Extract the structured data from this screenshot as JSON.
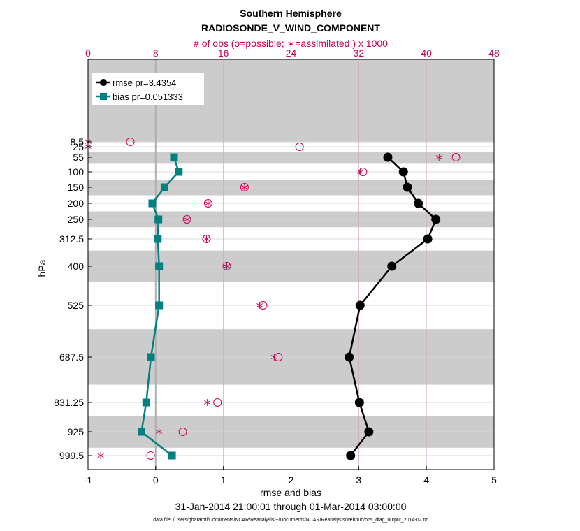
{
  "chart_data": {
    "type": "line",
    "title": "Southern Hemisphere",
    "subtitle": "RADIOSONDE_V_WIND_COMPONENT",
    "top_axis_label": "# of obs (o=possible; ∗=assimilated ) x 1000",
    "xlabel": "rmse and bias",
    "ylabel": "hPa",
    "date_range": "31-Jan-2014 21:00:01 through 01-Mar-2014 03:00:00",
    "footnote": "data file: /Users/gharamti/Documents/NCAR/Reanalysis/~/Documents/NCAR/Reanalysis/webpub/obs_diag_output_2014-02.nc",
    "xlim": [
      -1,
      5
    ],
    "x_ticks": [
      "-1",
      "0",
      "1",
      "2",
      "3",
      "4",
      "5"
    ],
    "top_xlim": [
      0,
      48
    ],
    "top_ticks": [
      "0",
      "8",
      "16",
      "24",
      "32",
      "40",
      "48"
    ],
    "y_reversed": true,
    "levels": [
      8.5,
      25,
      55,
      100,
      150,
      200,
      250,
      312.5,
      400,
      525,
      687.5,
      831.25,
      925,
      999.5
    ],
    "level_labels": [
      "8.5",
      "25",
      "55",
      "100",
      "150",
      "200",
      "250",
      "312.5",
      "400",
      "525",
      "687.5",
      "831.25",
      "925",
      "999.5"
    ],
    "shaded_bands_hPa": [
      [
        0,
        10
      ],
      [
        40,
        75
      ],
      [
        125,
        175
      ],
      [
        225,
        275
      ],
      [
        350,
        450
      ],
      [
        600,
        775
      ],
      [
        875,
        975
      ]
    ],
    "legend_position": "top-left",
    "grid": true,
    "series": [
      {
        "name": "rmse pr=3.4354",
        "color": "#000000",
        "marker": "circle",
        "values": [
          null,
          null,
          3.43,
          3.66,
          3.72,
          3.88,
          4.14,
          4.02,
          3.49,
          3.02,
          2.86,
          3.01,
          3.15,
          2.88
        ]
      },
      {
        "name": "bias pr=0.051333",
        "color": "#008080",
        "marker": "square",
        "values": [
          null,
          null,
          0.27,
          0.34,
          0.13,
          -0.05,
          0.04,
          0.03,
          0.05,
          0.05,
          -0.07,
          -0.14,
          -0.21,
          0.24
        ]
      }
    ],
    "obs_possible_x1000": [
      5.0,
      25.0,
      43.5,
      32.5,
      18.5,
      14.2,
      11.7,
      14.0,
      16.4,
      20.7,
      22.5,
      15.3,
      11.2,
      7.4
    ],
    "obs_assimilated_x1000": [
      0.0,
      0.0,
      41.5,
      32.2,
      18.5,
      14.2,
      11.7,
      14.0,
      16.4,
      20.3,
      22.0,
      14.1,
      8.4,
      1.5
    ],
    "colors": {
      "obs": "#cc0055",
      "band": "#cccccc",
      "grid": "#d9d9d9",
      "zero_line": "#b0b0b0"
    }
  }
}
